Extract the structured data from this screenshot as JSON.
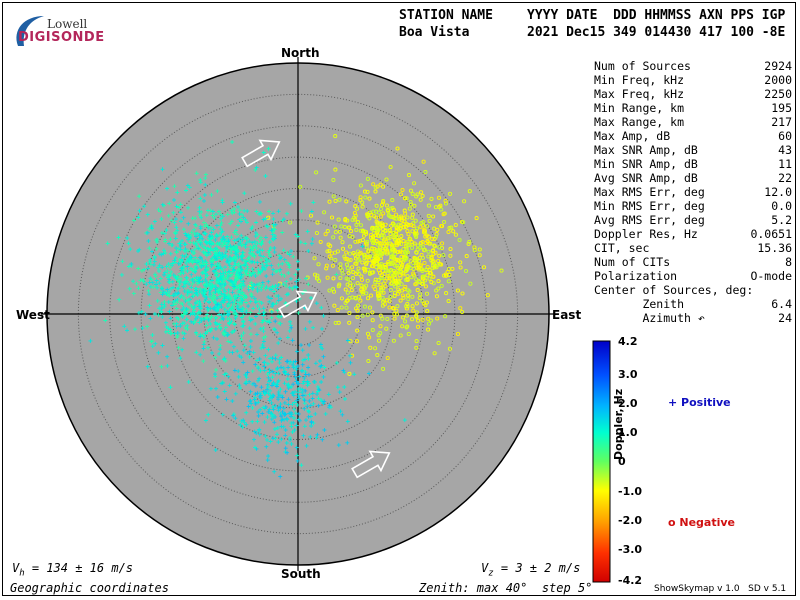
{
  "logo": {
    "top": "Lowell",
    "main": "DIGISONDE"
  },
  "header": {
    "line1_name": "STATION NAME",
    "line1_cols": "YYYY DATE  DDD HHMMSS AXN PPS IGP",
    "line2_name": "Boa Vista",
    "line2_cols": "2021 Dec15 349 014430 417 100 -8E"
  },
  "stats": [
    {
      "label": "Num of Sources",
      "value": "2924"
    },
    {
      "label": "Min Freq, kHz",
      "value": "2000"
    },
    {
      "label": "Max Freq, kHz",
      "value": "2250"
    },
    {
      "label": "Min Range, km",
      "value": "195"
    },
    {
      "label": "Max Range, km",
      "value": "217"
    },
    {
      "label": "Max Amp, dB",
      "value": "60"
    },
    {
      "label": "Max SNR Amp, dB",
      "value": "43"
    },
    {
      "label": "Min SNR Amp, dB",
      "value": "11"
    },
    {
      "label": "Avg SNR Amp, dB",
      "value": "22"
    },
    {
      "label": "Max RMS Err, deg",
      "value": "12.0"
    },
    {
      "label": "Min RMS Err, deg",
      "value": "0.0"
    },
    {
      "label": "Avg RMS Err, deg",
      "value": "5.2"
    },
    {
      "label": "Doppler Res, Hz",
      "value": "0.0651"
    },
    {
      "label": "CIT, sec",
      "value": "15.36"
    },
    {
      "label": "Num of CITs",
      "value": "8"
    },
    {
      "label": "Polarization",
      "value": "O-mode"
    },
    {
      "label": "Center of Sources, deg:",
      "value": ""
    },
    {
      "label": "       Zenith",
      "value": "6.4"
    },
    {
      "label": "       Azimuth ↶",
      "value": "24"
    }
  ],
  "colorbar": {
    "ticks": [
      "4.2",
      "3.0",
      "2.0",
      "1.0",
      "0",
      "-1.0",
      "-2.0",
      "-3.0",
      "-4.2"
    ],
    "label": "Doppler, Hz",
    "positive_label": "+ Positive",
    "negative_label": "o Negative"
  },
  "directions": {
    "north": "North",
    "south": "South",
    "east": "East",
    "west": "West"
  },
  "footer": {
    "vh": "V",
    "vh_sub": "h",
    "vh_text": " = 134 ± 16 m/s",
    "vz": "V",
    "vz_sub": "z",
    "vz_text": " = 3 ± 2 m/s",
    "coords": "Geographic coordinates",
    "zenith": "Zenith: max 40°  step 5°",
    "version": "ShowSkymap v 1.0   SD v 5.1"
  },
  "colors": {
    "plot_bg": "#a6a6a6",
    "grid": "#5a5a5a",
    "axis": "#000000",
    "arrow": "#ffffff"
  },
  "chart_data": {
    "type": "scatter",
    "projection": "polar-skymap",
    "zenith_max_deg": 40,
    "zenith_step_deg": 5,
    "grid": true,
    "legend_placement": "right",
    "colorbar_range_hz": [
      -4.2,
      4.2
    ],
    "clusters": [
      {
        "name": "Negative",
        "marker": "o",
        "center_zenith_deg": 17,
        "center_azimuth_deg": 58,
        "spread_deg": 5.5,
        "count": 900,
        "doppler_hz_range": [
          -0.6,
          -1.2
        ]
      },
      {
        "name": "Positive",
        "marker": "+",
        "center_zenith_deg": 14,
        "center_azimuth_deg": 295,
        "spread_deg": 6,
        "count": 1400,
        "doppler_hz_range": [
          1.4,
          0.6
        ]
      },
      {
        "name": "Positive",
        "marker": "+",
        "center_zenith_deg": 13,
        "center_azimuth_deg": 190,
        "spread_deg": 4.5,
        "count": 400,
        "doppler_hz_range": [
          1.8,
          1.0
        ]
      }
    ],
    "velocity_arrows_azimuth_deg": [
      60,
      60,
      60
    ]
  }
}
